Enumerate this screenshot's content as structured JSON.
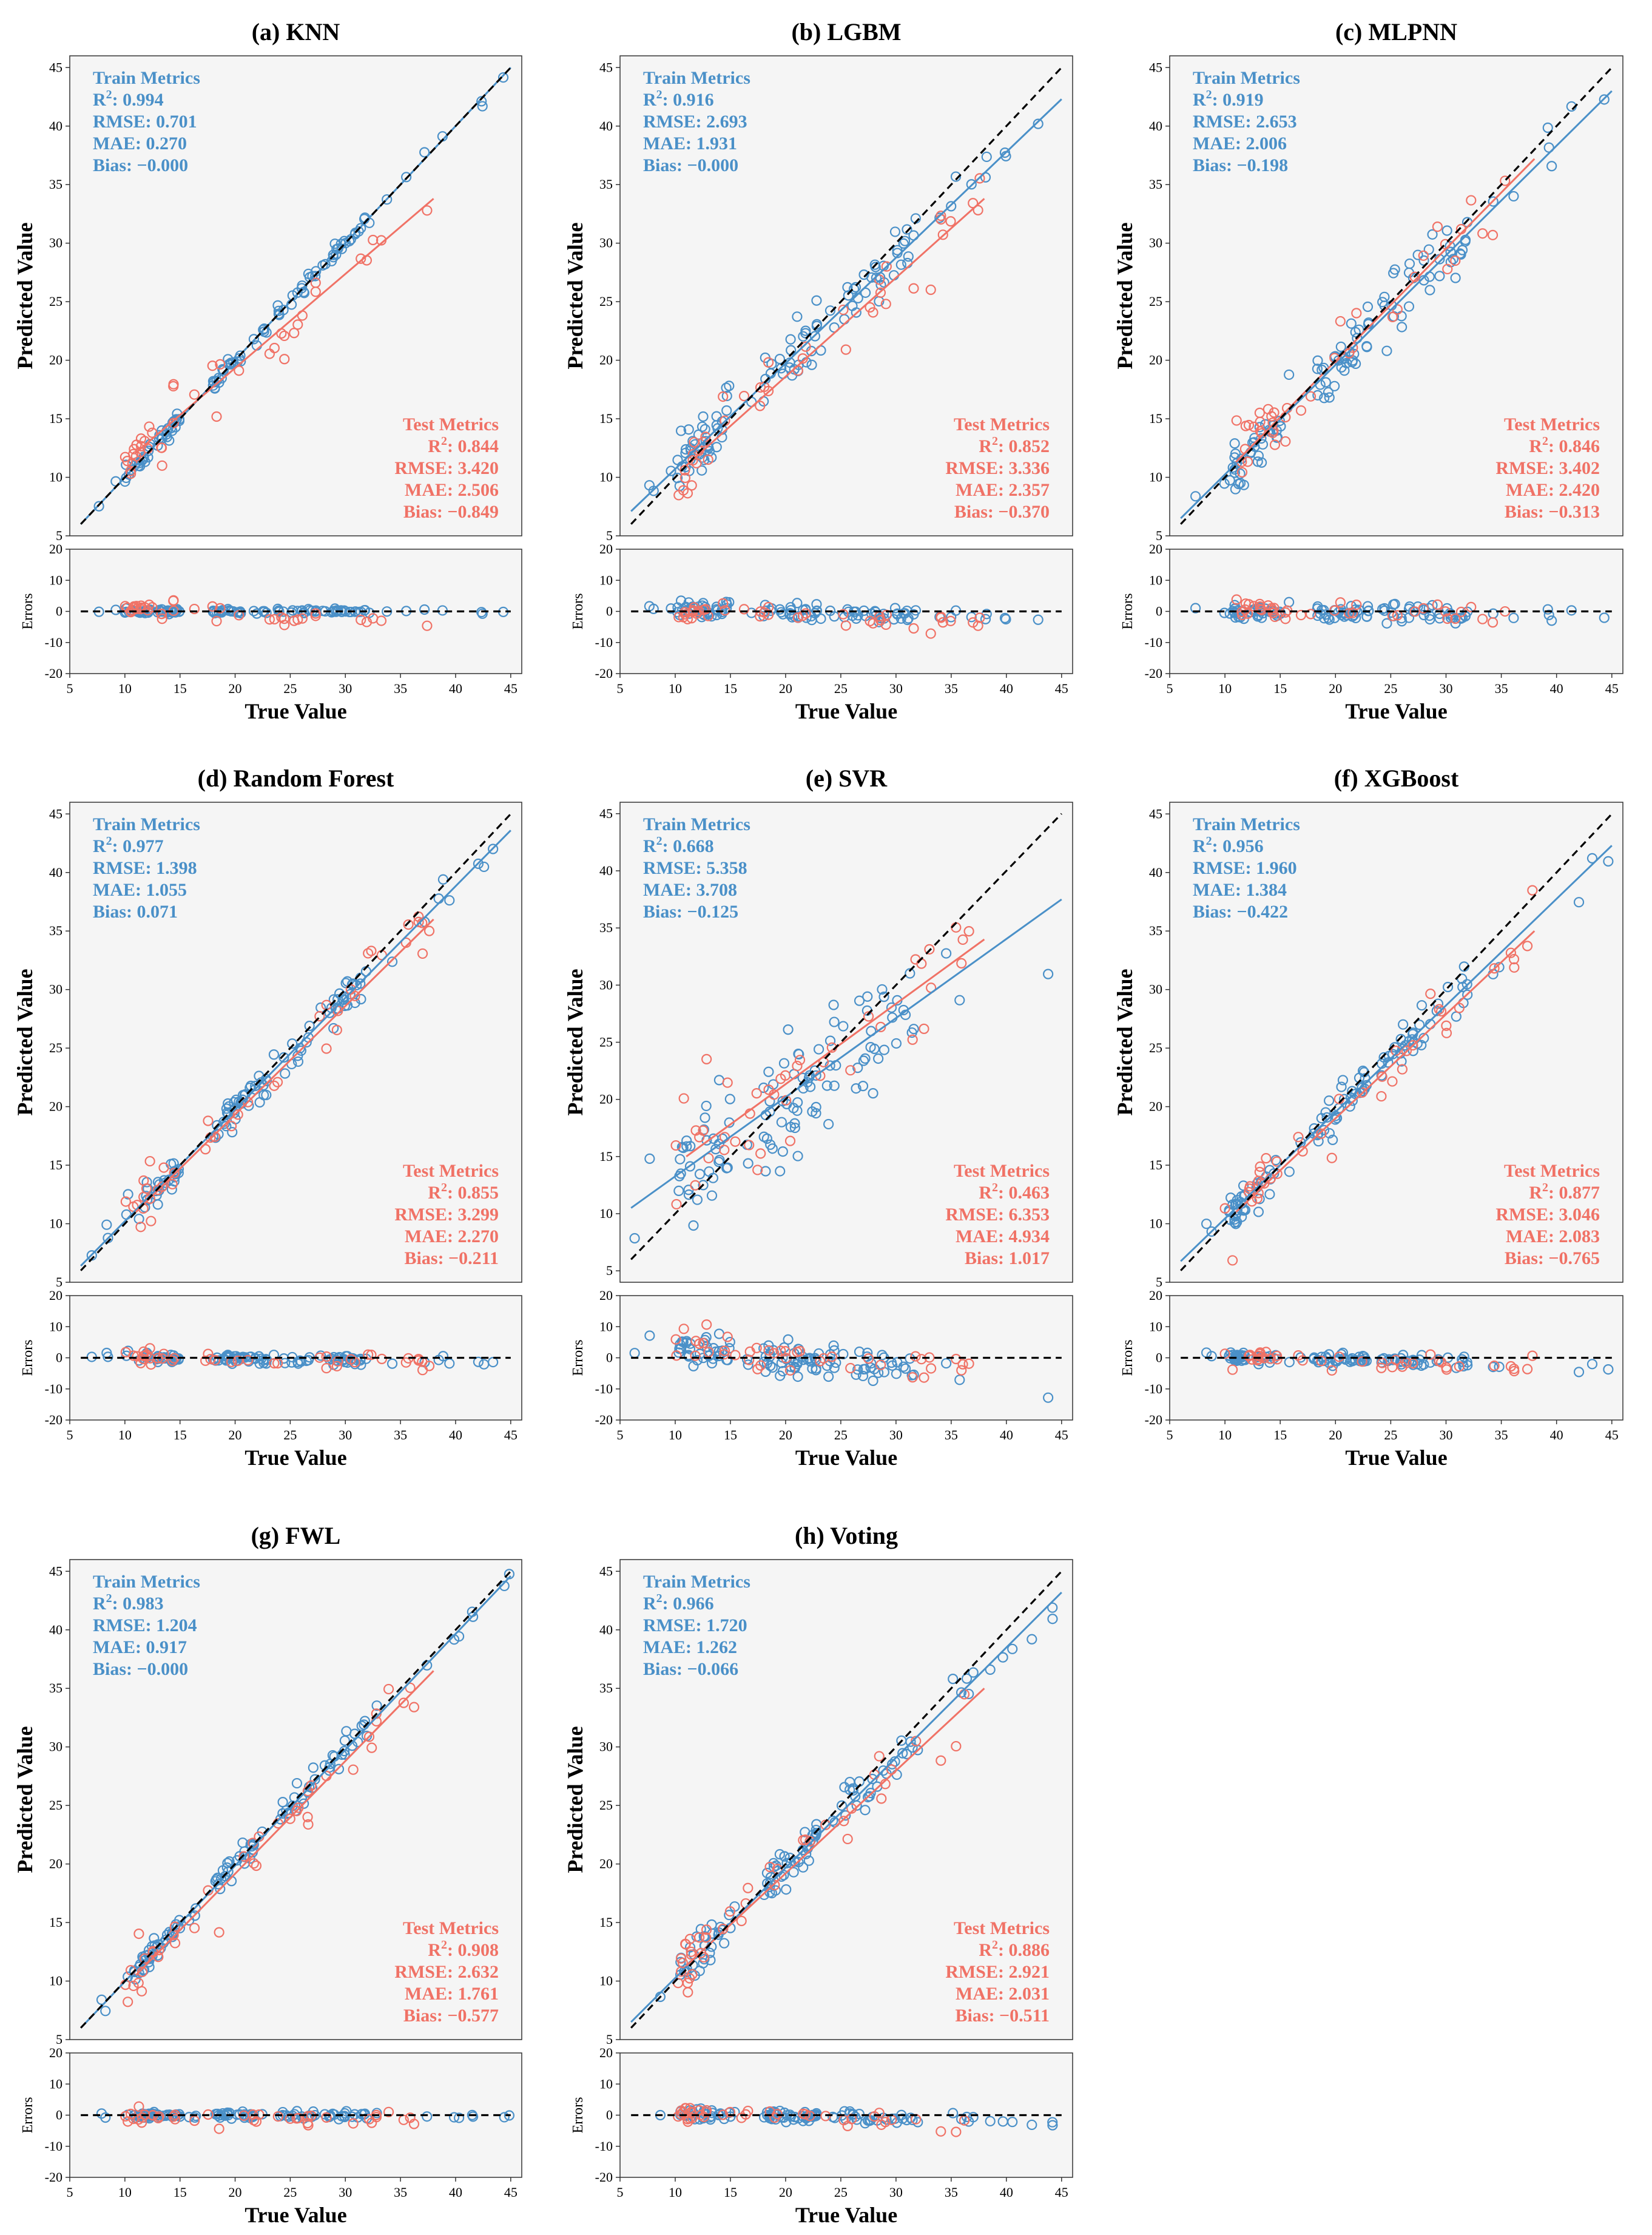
{
  "figure": {
    "colors": {
      "train": "#4a90c8",
      "test": "#f07266",
      "panel_bg": "#f5f5f5",
      "axis": "#333333",
      "ideal_line": "#000000"
    },
    "xlabel": "True Value",
    "ylabel": "Predicted Value",
    "residual_ylabel": "Errors",
    "train_header": "Train Metrics",
    "test_header": "Test Metrics"
  },
  "chart_data": [
    {
      "type": "scatter",
      "title": "(a) KNN",
      "xlim": [
        5,
        46
      ],
      "ylim": [
        5,
        46
      ],
      "xticks": [
        5,
        10,
        15,
        20,
        25,
        30,
        35,
        40,
        45
      ],
      "yticks": [
        5,
        10,
        15,
        20,
        25,
        30,
        35,
        40,
        45
      ],
      "residual_ylim": [
        -20,
        20
      ],
      "residual_yticks": [
        -20,
        -10,
        0,
        10,
        20
      ],
      "train": {
        "R2": "0.994",
        "RMSE": "0.701",
        "MAE": "0.270",
        "Bias": "−0.000",
        "fit": [
          [
            6,
            6.0
          ],
          [
            45,
            45.0
          ]
        ]
      },
      "test": {
        "R2": "0.844",
        "RMSE": "3.420",
        "MAE": "2.506",
        "Bias": "−0.849",
        "fit": [
          [
            11,
            12.1
          ],
          [
            38,
            33.8
          ]
        ]
      }
    },
    {
      "type": "scatter",
      "title": "(b) LGBM",
      "xlim": [
        5,
        46
      ],
      "ylim": [
        5,
        46
      ],
      "xticks": [
        5,
        10,
        15,
        20,
        25,
        30,
        35,
        40,
        45
      ],
      "yticks": [
        5,
        10,
        15,
        20,
        25,
        30,
        35,
        40,
        45
      ],
      "residual_ylim": [
        -20,
        20
      ],
      "residual_yticks": [
        -20,
        -10,
        0,
        10,
        20
      ],
      "train": {
        "R2": "0.916",
        "RMSE": "2.693",
        "MAE": "1.931",
        "Bias": "−0.000",
        "fit": [
          [
            6,
            7.1
          ],
          [
            45,
            42.3
          ]
        ]
      },
      "test": {
        "R2": "0.852",
        "RMSE": "3.336",
        "MAE": "2.357",
        "Bias": "−0.370",
        "fit": [
          [
            11,
            11.0
          ],
          [
            38,
            33.8
          ]
        ]
      }
    },
    {
      "type": "scatter",
      "title": "(c) MLPNN",
      "xlim": [
        5,
        46
      ],
      "ylim": [
        5,
        46
      ],
      "xticks": [
        5,
        10,
        15,
        20,
        25,
        30,
        35,
        40,
        45
      ],
      "yticks": [
        5,
        10,
        15,
        20,
        25,
        30,
        35,
        40,
        45
      ],
      "residual_ylim": [
        -20,
        20
      ],
      "residual_yticks": [
        -20,
        -10,
        0,
        10,
        20
      ],
      "train": {
        "R2": "0.919",
        "RMSE": "2.653",
        "MAE": "2.006",
        "Bias": "−0.198",
        "fit": [
          [
            6,
            6.5
          ],
          [
            45,
            43.0
          ]
        ]
      },
      "test": {
        "R2": "0.846",
        "RMSE": "3.402",
        "MAE": "2.420",
        "Bias": "−0.313",
        "fit": [
          [
            11,
            11.3
          ],
          [
            38,
            37.2
          ]
        ]
      }
    },
    {
      "type": "scatter",
      "title": "(d) Random Forest",
      "xlim": [
        5,
        46
      ],
      "ylim": [
        5,
        46
      ],
      "xticks": [
        5,
        10,
        15,
        20,
        25,
        30,
        35,
        40,
        45
      ],
      "yticks": [
        5,
        10,
        15,
        20,
        25,
        30,
        35,
        40,
        45
      ],
      "residual_ylim": [
        -20,
        20
      ],
      "residual_yticks": [
        -20,
        -10,
        0,
        10,
        20
      ],
      "train": {
        "R2": "0.977",
        "RMSE": "1.398",
        "MAE": "1.055",
        "Bias": "0.071",
        "fit": [
          [
            6,
            6.4
          ],
          [
            45,
            43.6
          ]
        ]
      },
      "test": {
        "R2": "0.855",
        "RMSE": "3.299",
        "MAE": "2.270",
        "Bias": "−0.211",
        "fit": [
          [
            11,
            11.0
          ],
          [
            38,
            36.0
          ]
        ]
      }
    },
    {
      "type": "scatter",
      "title": "(e) SVR",
      "xlim": [
        5,
        46
      ],
      "ylim": [
        4,
        46
      ],
      "xticks": [
        5,
        10,
        15,
        20,
        25,
        30,
        35,
        40,
        45
      ],
      "yticks": [
        5,
        10,
        15,
        20,
        25,
        30,
        35,
        40,
        45
      ],
      "residual_ylim": [
        -20,
        20
      ],
      "residual_yticks": [
        -20,
        -10,
        0,
        10,
        20
      ],
      "train": {
        "R2": "0.668",
        "RMSE": "5.358",
        "MAE": "3.708",
        "Bias": "−0.125",
        "fit": [
          [
            6,
            10.5
          ],
          [
            45,
            37.5
          ]
        ]
      },
      "test": {
        "R2": "0.463",
        "RMSE": "6.353",
        "MAE": "4.934",
        "Bias": "1.017",
        "fit": [
          [
            11,
            15.0
          ],
          [
            38,
            34.0
          ]
        ]
      }
    },
    {
      "type": "scatter",
      "title": "(f) XGBoost",
      "xlim": [
        5,
        46
      ],
      "ylim": [
        5,
        46
      ],
      "xticks": [
        5,
        10,
        15,
        20,
        25,
        30,
        35,
        40,
        45
      ],
      "yticks": [
        5,
        10,
        15,
        20,
        25,
        30,
        35,
        40,
        45
      ],
      "residual_ylim": [
        -20,
        20
      ],
      "residual_yticks": [
        -20,
        -10,
        0,
        10,
        20
      ],
      "train": {
        "R2": "0.956",
        "RMSE": "1.960",
        "MAE": "1.384",
        "Bias": "−0.422",
        "fit": [
          [
            6,
            6.8
          ],
          [
            45,
            42.3
          ]
        ]
      },
      "test": {
        "R2": "0.877",
        "RMSE": "3.046",
        "MAE": "2.083",
        "Bias": "−0.765",
        "fit": [
          [
            11,
            11.0
          ],
          [
            38,
            35.0
          ]
        ]
      }
    },
    {
      "type": "scatter",
      "title": "(g) FWL",
      "xlim": [
        5,
        46
      ],
      "ylim": [
        5,
        46
      ],
      "xticks": [
        5,
        10,
        15,
        20,
        25,
        30,
        35,
        40,
        45
      ],
      "yticks": [
        5,
        10,
        15,
        20,
        25,
        30,
        35,
        40,
        45
      ],
      "residual_ylim": [
        -20,
        20
      ],
      "residual_yticks": [
        -20,
        -10,
        0,
        10,
        20
      ],
      "train": {
        "R2": "0.983",
        "RMSE": "1.204",
        "MAE": "0.917",
        "Bias": "−0.000",
        "fit": [
          [
            6,
            6.0
          ],
          [
            45,
            44.6
          ]
        ]
      },
      "test": {
        "R2": "0.908",
        "RMSE": "2.632",
        "MAE": "1.761",
        "Bias": "−0.577",
        "fit": [
          [
            11,
            10.5
          ],
          [
            38,
            36.5
          ]
        ]
      }
    },
    {
      "type": "scatter",
      "title": "(h) Voting",
      "xlim": [
        5,
        46
      ],
      "ylim": [
        5,
        46
      ],
      "xticks": [
        5,
        10,
        15,
        20,
        25,
        30,
        35,
        40,
        45
      ],
      "yticks": [
        5,
        10,
        15,
        20,
        25,
        30,
        35,
        40,
        45
      ],
      "residual_ylim": [
        -20,
        20
      ],
      "residual_yticks": [
        -20,
        -10,
        0,
        10,
        20
      ],
      "train": {
        "R2": "0.966",
        "RMSE": "1.720",
        "MAE": "1.262",
        "Bias": "−0.066",
        "fit": [
          [
            6,
            6.5
          ],
          [
            45,
            43.2
          ]
        ]
      },
      "test": {
        "R2": "0.886",
        "RMSE": "2.921",
        "MAE": "2.031",
        "Bias": "−0.511",
        "fit": [
          [
            11,
            11.3
          ],
          [
            38,
            35.0
          ]
        ]
      }
    }
  ]
}
